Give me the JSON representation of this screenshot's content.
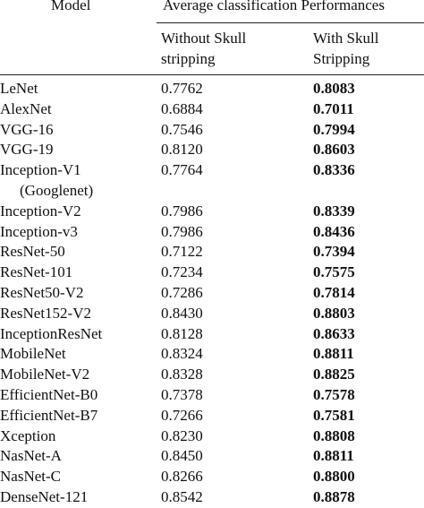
{
  "table": {
    "header": {
      "model": "Model",
      "group": "Average classification Performances",
      "columns": [
        [
          "Without Skull",
          "stripping"
        ],
        [
          "With Skull",
          "Stripping"
        ]
      ]
    },
    "rows": [
      [
        [
          "LeNet"
        ],
        "0.7762",
        "0.8083"
      ],
      [
        [
          "AlexNet"
        ],
        "0.6884",
        "0.7011"
      ],
      [
        [
          "VGG-16"
        ],
        "0.7546",
        "0.7994"
      ],
      [
        [
          "VGG-19"
        ],
        "0.8120",
        "0.8603"
      ],
      [
        [
          "Inception-V1",
          "(Googlenet)"
        ],
        "0.7764",
        "0.8336"
      ],
      [
        [
          "Inception-V2"
        ],
        "0.7986",
        "0.8339"
      ],
      [
        [
          "Inception-v3"
        ],
        "0.7986",
        "0.8436"
      ],
      [
        [
          "ResNet-50"
        ],
        "0.7122",
        "0.7394"
      ],
      [
        [
          "ResNet-101"
        ],
        "0.7234",
        "0.7575"
      ],
      [
        [
          "ResNet50-V2"
        ],
        "0.7286",
        "0.7814"
      ],
      [
        [
          "ResNet152-V2"
        ],
        "0.8430",
        "0.8803"
      ],
      [
        [
          "InceptionResNet"
        ],
        "0.8128",
        "0.8633"
      ],
      [
        [
          "MobileNet"
        ],
        "0.8324",
        "0.8811"
      ],
      [
        [
          "MobileNet-V2"
        ],
        "0.8328",
        "0.8825"
      ],
      [
        [
          "EfficientNet-B0"
        ],
        "0.7378",
        "0.7578"
      ],
      [
        [
          "EfficientNet-B7"
        ],
        "0.7266",
        "0.7581"
      ],
      [
        [
          "Xception"
        ],
        "0.8230",
        "0.8808"
      ],
      [
        [
          "NasNet-A"
        ],
        "0.8450",
        "0.8811"
      ],
      [
        [
          "NasNet-C"
        ],
        "0.8266",
        "0.8800"
      ],
      [
        [
          "DenseNet-121"
        ],
        "0.8542",
        "0.8878"
      ]
    ]
  }
}
